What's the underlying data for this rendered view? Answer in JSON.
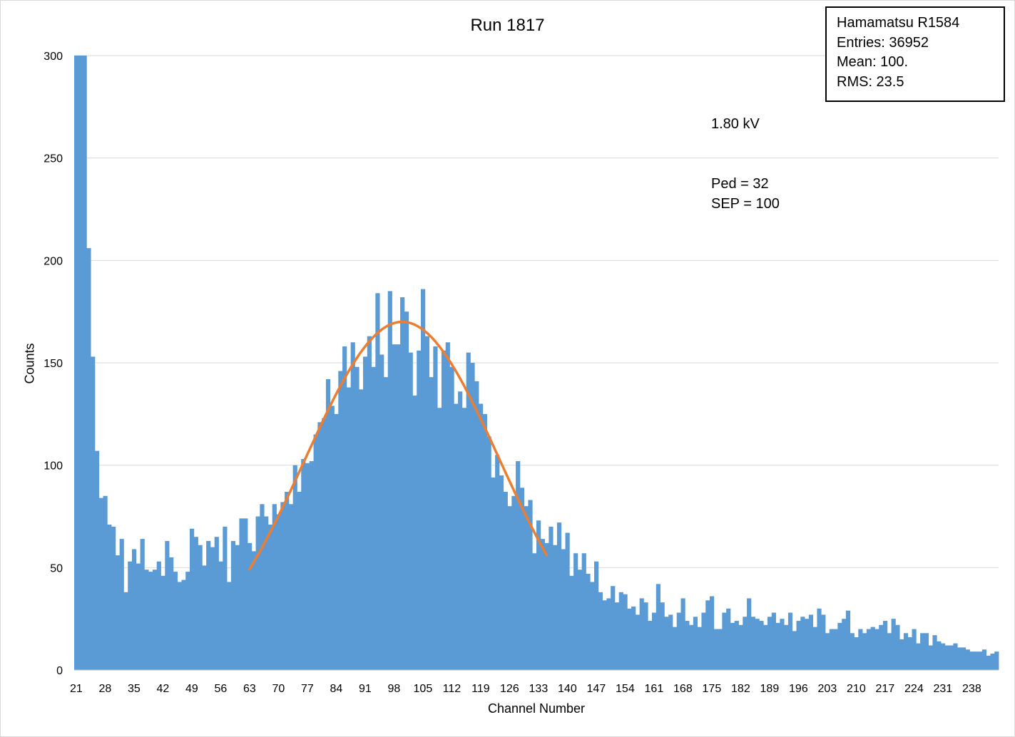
{
  "chart_data": {
    "type": "bar",
    "title": "Run 1817",
    "xlabel": "Channel Number",
    "ylabel": "Counts",
    "ylim": [
      0,
      300
    ],
    "yticks": [
      0,
      50,
      100,
      150,
      200,
      250,
      300
    ],
    "xticks": [
      21,
      28,
      35,
      42,
      49,
      56,
      63,
      70,
      77,
      84,
      91,
      98,
      105,
      112,
      119,
      126,
      133,
      140,
      147,
      154,
      161,
      168,
      175,
      182,
      189,
      196,
      203,
      210,
      217,
      224,
      231,
      238
    ],
    "x_start": 21,
    "x_end": 239,
    "grid": "horizontal",
    "bar_color": "#5b9bd5",
    "values": [
      300,
      300,
      300,
      206,
      153,
      107,
      84,
      85,
      71,
      70,
      56,
      64,
      38,
      53,
      59,
      52,
      64,
      49,
      48,
      49,
      53,
      46,
      63,
      55,
      48,
      43,
      44,
      48,
      69,
      65,
      61,
      51,
      63,
      60,
      65,
      53,
      70,
      43,
      63,
      61,
      74,
      74,
      62,
      58,
      75,
      81,
      75,
      71,
      81,
      76,
      82,
      87,
      81,
      100,
      87,
      103,
      101,
      102,
      115,
      121,
      123,
      142,
      129,
      125,
      146,
      158,
      138,
      160,
      148,
      137,
      153,
      163,
      148,
      184,
      154,
      143,
      185,
      159,
      159,
      182,
      175,
      155,
      134,
      156,
      186,
      163,
      143,
      158,
      128,
      156,
      160,
      148,
      130,
      136,
      128,
      155,
      150,
      141,
      130,
      125,
      114,
      94,
      105,
      95,
      87,
      80,
      85,
      102,
      89,
      80,
      83,
      57,
      73,
      64,
      62,
      70,
      61,
      72,
      59,
      67,
      46,
      57,
      49,
      57,
      47,
      43,
      53,
      38,
      34,
      35,
      41,
      33,
      38,
      37,
      30,
      31,
      27,
      35,
      33,
      24,
      28,
      42,
      33,
      26,
      27,
      21,
      28,
      35,
      24,
      22,
      26,
      21,
      28,
      34,
      36,
      20,
      20,
      28,
      30,
      23,
      24,
      22,
      26,
      35,
      26,
      25,
      24,
      22,
      26,
      28,
      23,
      25,
      22,
      28,
      19,
      24,
      26,
      25,
      27,
      21,
      30,
      27,
      18,
      20,
      20,
      23,
      25,
      29,
      18,
      16,
      20,
      18,
      20,
      21,
      20,
      22,
      24,
      18,
      25,
      22,
      15,
      18,
      16,
      20,
      13,
      18,
      18,
      12,
      17,
      14,
      13,
      12,
      12,
      13,
      11,
      11,
      10,
      9,
      9,
      9,
      10,
      7,
      8,
      9
    ],
    "fit": {
      "name": "Gaussian fit",
      "type": "gaussian",
      "color": "#ed7d31",
      "amplitude": 170,
      "mean": 100,
      "sigma": 23.5,
      "x_range": [
        63,
        135
      ]
    }
  },
  "stats_box": {
    "line1": "Hamamatsu R1584",
    "line2": "Entries: 36952",
    "line3": "Mean: 100.",
    "line4": "RMS: 23.5"
  },
  "annotations": {
    "voltage": "1.80 kV",
    "ped": "Ped = 32",
    "sep": "SEP = 100"
  }
}
